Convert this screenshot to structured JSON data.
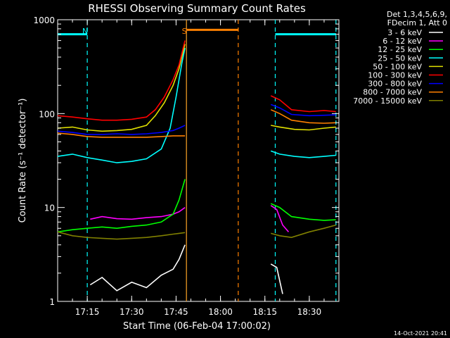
{
  "chart_data": {
    "type": "line",
    "title": "RHESSI Observing Summary Count Rates",
    "xlabel": "Start Time (06-Feb-04 17:00:02)",
    "ylabel": "Count Rate (s⁻¹ detector⁻¹)",
    "y_scale": "log",
    "ylim": [
      1,
      1000
    ],
    "xlim_minutes": [
      5,
      100
    ],
    "x_ticks": [
      {
        "minute": 15,
        "label": "17:15"
      },
      {
        "minute": 30,
        "label": "17:30"
      },
      {
        "minute": 45,
        "label": "17:45"
      },
      {
        "minute": 60,
        "label": "18:00"
      },
      {
        "minute": 75,
        "label": "18:15"
      },
      {
        "minute": 90,
        "label": "18:30"
      }
    ],
    "y_ticks": [
      {
        "value": 1,
        "label": "1"
      },
      {
        "value": 10,
        "label": "10"
      },
      {
        "value": 100,
        "label": "100"
      },
      {
        "value": 1000,
        "label": "1000"
      }
    ],
    "legend_header": [
      "Det 1,3,4,5,6,9,",
      "FDecim 1, Att 0"
    ],
    "legend_position": "right",
    "data_gap_minutes": [
      48.5,
      76.5
    ],
    "series": [
      {
        "name": "3 - 6 keV",
        "color": "#ffffff",
        "x": [
          16,
          20,
          25,
          30,
          35,
          40,
          44,
          46,
          48,
          77,
          79,
          81
        ],
        "y": [
          1.5,
          1.8,
          1.3,
          1.6,
          1.4,
          1.9,
          2.2,
          2.8,
          4.0,
          2.5,
          2.3,
          1.2
        ]
      },
      {
        "name": "6 - 12 keV",
        "color": "#ff00ff",
        "x": [
          16,
          20,
          25,
          30,
          35,
          40,
          44,
          46,
          48,
          77,
          79,
          81,
          83
        ],
        "y": [
          7.5,
          8.0,
          7.6,
          7.5,
          7.8,
          8.0,
          8.5,
          9.0,
          10.0,
          10.5,
          9.5,
          6.5,
          5.5
        ]
      },
      {
        "name": "12 - 25 keV",
        "color": "#00ff00",
        "x": [
          5,
          10,
          15,
          20,
          25,
          30,
          35,
          40,
          44,
          46,
          48,
          77,
          80,
          84,
          90,
          95,
          99
        ],
        "y": [
          5.5,
          5.8,
          6.0,
          6.2,
          6.0,
          6.3,
          6.5,
          7.0,
          8.5,
          12,
          20,
          11,
          10,
          8.0,
          7.5,
          7.3,
          7.4
        ]
      },
      {
        "name": "25 - 50 keV",
        "color": "#00ffff",
        "x": [
          5,
          10,
          15,
          20,
          25,
          30,
          35,
          40,
          43,
          45,
          47,
          48,
          77,
          80,
          85,
          90,
          95,
          99
        ],
        "y": [
          35,
          37,
          34,
          32,
          30,
          31,
          33,
          42,
          70,
          150,
          350,
          500,
          40,
          37,
          35,
          34,
          35,
          36
        ]
      },
      {
        "name": "50 - 100 keV",
        "color": "#e0e000",
        "x": [
          5,
          10,
          15,
          20,
          25,
          30,
          35,
          38,
          41,
          44,
          46,
          48,
          77,
          80,
          85,
          90,
          95,
          99
        ],
        "y": [
          70,
          72,
          67,
          65,
          66,
          68,
          75,
          95,
          130,
          200,
          300,
          550,
          75,
          72,
          68,
          67,
          70,
          72
        ]
      },
      {
        "name": "100 - 300 keV",
        "color": "#ff0000",
        "x": [
          5,
          10,
          15,
          20,
          25,
          30,
          35,
          38,
          41,
          44,
          46,
          48,
          77,
          80,
          84,
          90,
          95,
          99
        ],
        "y": [
          95,
          92,
          88,
          85,
          85,
          87,
          92,
          110,
          150,
          230,
          330,
          600,
          155,
          140,
          110,
          105,
          108,
          105
        ]
      },
      {
        "name": "300 - 800 keV",
        "color": "#0000ff",
        "x": [
          5,
          10,
          15,
          20,
          25,
          30,
          35,
          40,
          44,
          46,
          48,
          77,
          80,
          84,
          90,
          95,
          99
        ],
        "y": [
          65,
          63,
          60,
          60,
          61,
          60,
          61,
          63,
          66,
          70,
          75,
          125,
          115,
          98,
          95,
          96,
          97
        ]
      },
      {
        "name": "800 - 7000 keV",
        "color": "#ff8000",
        "x": [
          5,
          10,
          15,
          20,
          25,
          30,
          35,
          40,
          44,
          46,
          48,
          77,
          80,
          84,
          90,
          95,
          99
        ],
        "y": [
          62,
          60,
          57,
          56,
          56,
          56,
          56,
          57,
          58,
          58,
          58,
          110,
          100,
          85,
          80,
          79,
          80
        ]
      },
      {
        "name": "7000 - 15000 keV",
        "color": "#808000",
        "x": [
          5,
          10,
          15,
          20,
          25,
          30,
          35,
          40,
          44,
          46,
          48,
          77,
          80,
          84,
          90,
          95,
          99
        ],
        "y": [
          5.5,
          5.0,
          4.8,
          4.7,
          4.6,
          4.7,
          4.8,
          5.0,
          5.2,
          5.3,
          5.4,
          5.3,
          5.0,
          4.8,
          5.5,
          6.0,
          6.5
        ]
      }
    ],
    "bars": [
      {
        "kind": "solid",
        "color": "#00ffff",
        "x": [
          5,
          15
        ],
        "y": 700
      },
      {
        "kind": "solid",
        "color": "#00ffff",
        "x": [
          78.5,
          99
        ],
        "y": 700
      },
      {
        "kind": "solid",
        "color": "#ff8000",
        "x": [
          48.5,
          66
        ],
        "y": 780
      }
    ],
    "markers": [
      {
        "kind": "dashed",
        "color": "#00ffff",
        "x": 15,
        "label": "N"
      },
      {
        "kind": "solid",
        "color": "#00ffff",
        "x": 48.5
      },
      {
        "kind": "dashed",
        "color": "#00ffff",
        "x": 78.5
      },
      {
        "kind": "dashed",
        "color": "#00ffff",
        "x": 99
      },
      {
        "kind": "solid",
        "color": "#ff8000",
        "x": 48.5,
        "label": "S"
      },
      {
        "kind": "dashed",
        "color": "#ff8000",
        "x": 66
      }
    ]
  },
  "footer": {
    "timestamp": "14-Oct-2021 20:41"
  }
}
